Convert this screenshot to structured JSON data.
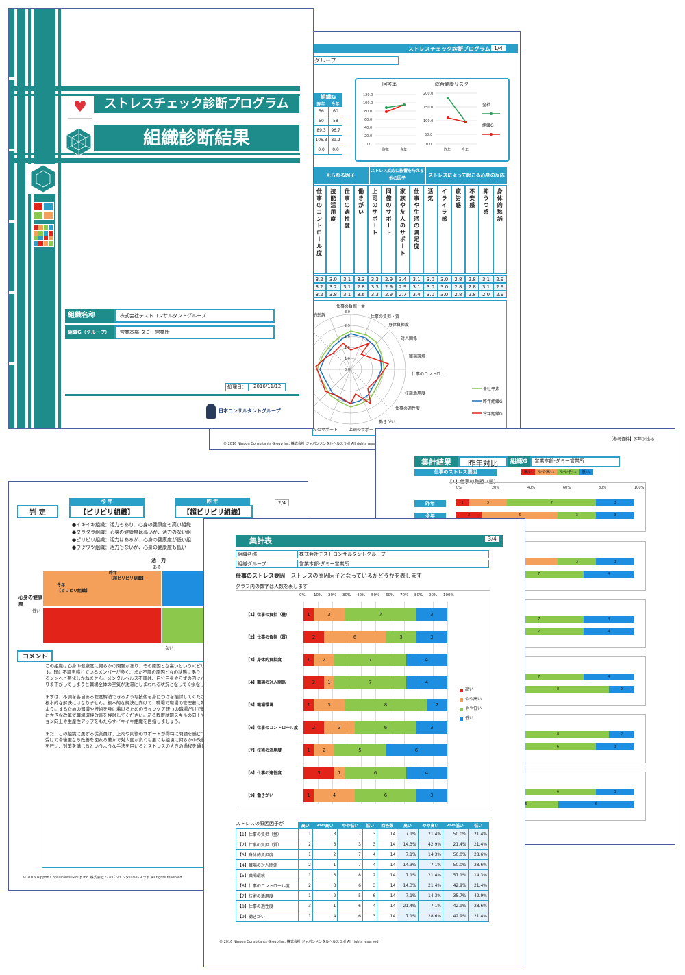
{
  "cover": {
    "title": "ストレスチェック診断プログラム",
    "subtitle": "組織診断結果",
    "org_label": "組織名称",
    "org_value": "株式会社テストコンサルタントグループ",
    "group_label": "組織G（グループ）",
    "group_value": "営業本部-ダミー営業所",
    "date_label": "処理日：",
    "date_value": "2016/11/12",
    "logo_text": "日本コンサルタントグループ"
  },
  "page1": {
    "header": "ストレスチェック診断プログラム",
    "page_no": "1/4",
    "group_tail": "グループ",
    "small_table": {
      "header": "組織G",
      "cols": [
        "昨年",
        "今年"
      ],
      "rows": [
        [
          "56",
          "60"
        ],
        [
          "50",
          "58"
        ],
        [
          "89.3",
          "96.7"
        ],
        [
          "106.3",
          "89.2"
        ],
        [
          "0.0",
          "0.0"
        ]
      ]
    },
    "chart_titles": [
      "回答率",
      "総合健康リスク"
    ],
    "legend": [
      "全社",
      "組織G"
    ],
    "factor_headers": [
      "えられる因子",
      "ストレス反応に影響を与える他の因子",
      "ストレスによって起こる心身の反応"
    ],
    "factors": [
      "仕事のコントロール度",
      "技能活用度",
      "仕事の適性度",
      "働きがい",
      "上司のサポート",
      "同僚のサポート",
      "家族や友人のサポート",
      "仕事や生活の満足度",
      "活気",
      "イライラ感",
      "疲労感",
      "不安感",
      "抑うつ感",
      "身体的愁訴"
    ],
    "score_rows": [
      [
        "3.2",
        "3.0",
        "3.1",
        "3.3",
        "3.3",
        "2.9",
        "3.4",
        "3.1",
        "3.0",
        "3.0",
        "2.8",
        "2.8",
        "3.1",
        "2.9"
      ],
      [
        "3.2",
        "3.2",
        "3.1",
        "2.8",
        "3.3",
        "2.9",
        "2.9",
        "3.1",
        "3.0",
        "3.0",
        "2.8",
        "2.8",
        "3.1",
        "2.9"
      ],
      [
        "3.2",
        "3.8",
        "3.1",
        "3.6",
        "3.3",
        "2.9",
        "2.7",
        "3.4",
        "3.0",
        "3.0",
        "2.8",
        "2.8",
        "2.0",
        "2.9"
      ]
    ],
    "radar_labels": [
      "仕事の負担・量",
      "仕事の負担・質",
      "身体負担度",
      "対人関係",
      "職場環境",
      "仕事のコントロ…",
      "技能活用度",
      "仕事の適性度",
      "働きがい",
      "上司のサポート",
      "んのサポート",
      "的愁訴"
    ],
    "radar_legend": [
      "全社平均",
      "昨年組織G",
      "今年組織G"
    ],
    "copyright": "© 2016 Nippon Consultants Group Inc. 株式会社 ジャパンメンタルヘルスラボ All rights reserved."
  },
  "page_hyouka": {
    "note": "【参考資料】昨年対比-6",
    "title": "集計結果",
    "title2": "昨年対比",
    "group_label": "組織G",
    "group_value": "営業本部-ダミー営業所",
    "subtitle": "仕事のストレス要因",
    "legend": [
      "高い",
      "やや高い",
      "やや低い",
      "低い"
    ],
    "first_label": "【1】仕事の負担（量）",
    "row_labels": [
      "昨年",
      "今年"
    ],
    "axis": [
      "0%",
      "20%",
      "40%",
      "60%",
      "80%",
      "100%"
    ]
  },
  "page2": {
    "label_hantei": "判 定",
    "this_year": "今 年",
    "this_value": "【ピリピリ組織】",
    "last_year": "昨 年",
    "last_value": "【超ピリピリ組織】",
    "page_no": "2/4",
    "bullets": [
      "●イキイキ組織：活力もあり、心身の健康度も高い組織",
      "●ダラダラ組織：心身の健康度は高いが、活力のない組",
      "●ピリピリ組織：活力はあるが、心身の健康度が低い組",
      "●ウツウツ組織：活力もないが、心身の健康度も低い"
    ],
    "axis_top": "活　力",
    "axis_top_sub": "ある",
    "axis_left": "心身の健康度",
    "axis_left_sub": "低い",
    "axis_bottom": "ない",
    "quad_last": "昨年\n【超ピリピリ組織】",
    "quad_this": "今年\n【ピリピリ組織】",
    "comment_label": "コメント",
    "comment": "この組織は心身の健康度に何らかの問題があり、その原因とな高いという＜ピリピリ組織＞に分類されます。活力はありますがす。既に不調を感じているメンバーが多く、また不調の原因となの状態にあり、良くない状況と言えます。このまま放置しているン＞へと悪化しかねません。メンタルヘルス不調は、自分自身やらずの内にパフォーマンスが下がってしまうような特徴がありま下がってしまうと職場全体の空気が沈滞にしまわれる状況となってく損なってしまうことになってしまいます。\n\nまずは、不調を各自ある程度解消できるような技術を身につけを検討してください。このようなケアは即効性が期待できますが根本的な解決にはなりません。根本的な解決に向けて、職場で職場の管理者に対し、職場の環境調整やメンバーの不調を早期るようにするための知識や技術を身に着けるためのラインケア研つの職場だけで解決しない状況があるようでしたら、部署間でのに大きな改革で職場環境改善を検討してください。ある程度状環スキルの向上や適材適所、上司のリーダーシップ向上に目をション向上や生産性アップをもたらすイキイキ組織を目指しましょう。\n\nまた、この組織に属する従業員は、上司や同僚のサポートが得特に問題を感じていないという傾向が見られます。このような組受けて今後更なる改善を図れる若かで対人面が良くも悪くも組境に何らかの改善点がある場合、管理者だけではなく、従業員もを行い、対策を講じるというような手法を用いるとストレスの大きの過程を通じて一体感を醸成することも製がります。",
    "copyright": "© 2016 Nippon Consultants Group Inc. 株式会社 ジャパンメンタルヘルスラボ All rights reserved."
  },
  "page3": {
    "title": "集計表",
    "page_no": "3/4",
    "org_label": "組織名称",
    "org_value": "株式会社テストコンサルタントグループ",
    "group_label": "組織グループ",
    "group_value": "営業本部-ダミー営業所",
    "section": "仕事のストレス要因",
    "section_desc": "ストレスの原因因子となっているかどうかを表します",
    "note": "グラフ内の数字は人数を表します",
    "axis": [
      "0%",
      "10%",
      "20%",
      "30%",
      "40%",
      "50%",
      "60%",
      "70%",
      "80%",
      "90%",
      "100%"
    ],
    "legend": [
      "高い",
      "やや高い",
      "やや低い",
      "低い"
    ],
    "table_caption": "ストレスの原因因子が",
    "table_headers": [
      "高い",
      "やや高い",
      "やや低い",
      "低い",
      "回答数",
      "高い",
      "やや高い",
      "やや低い",
      "低い"
    ],
    "copyright": "© 2016 Nippon Consultants Group Inc. 株式会社 ジャパンメンタルヘルスラボ All rights reserved."
  },
  "chart_data": {
    "type": "bar",
    "categories": [
      "【1】仕事の負担（量）",
      "【2】仕事の負担（質）",
      "【3】身体的負担度",
      "【4】職場の対人関係",
      "【5】職場環境",
      "【6】仕事のコントロール度",
      "【7】技術の活用度",
      "【8】仕事の適性度",
      "【9】働きがい"
    ],
    "series": [
      {
        "name": "高い",
        "values": [
          1,
          2,
          1,
          2,
          1,
          2,
          1,
          3,
          1
        ]
      },
      {
        "name": "やや高い",
        "values": [
          3,
          6,
          2,
          1,
          3,
          3,
          2,
          1,
          4
        ]
      },
      {
        "name": "やや低い",
        "values": [
          7,
          3,
          7,
          7,
          8,
          6,
          5,
          6,
          6
        ]
      },
      {
        "name": "低い",
        "values": [
          3,
          3,
          4,
          4,
          2,
          3,
          6,
          4,
          3
        ]
      }
    ],
    "totals": [
      14,
      14,
      14,
      14,
      14,
      14,
      14,
      14,
      14
    ],
    "percent_rows": [
      [
        "7.1%",
        "21.4%",
        "50.0%",
        "21.4%"
      ],
      [
        "14.3%",
        "42.9%",
        "21.4%",
        "21.4%"
      ],
      [
        "7.1%",
        "14.3%",
        "50.0%",
        "28.6%"
      ],
      [
        "14.3%",
        "7.1%",
        "50.0%",
        "28.6%"
      ],
      [
        "7.1%",
        "21.4%",
        "57.1%",
        "14.3%"
      ],
      [
        "14.3%",
        "21.4%",
        "42.9%",
        "21.4%"
      ],
      [
        "7.1%",
        "14.3%",
        "35.7%",
        "42.9%"
      ],
      [
        "21.4%",
        "7.1%",
        "42.9%",
        "28.6%"
      ],
      [
        "7.1%",
        "28.6%",
        "42.9%",
        "21.4%"
      ]
    ],
    "stacked": true,
    "orientation": "horizontal",
    "xlim": [
      0,
      100
    ],
    "colors": [
      "#e2231a",
      "#f4a05a",
      "#8cc84b",
      "#1e8fe0"
    ],
    "legend_position": "right"
  }
}
